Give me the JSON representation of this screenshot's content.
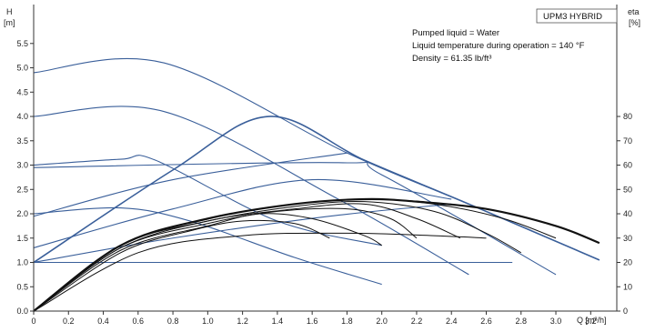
{
  "chart_data": {
    "type": "line",
    "badge": "UPM3 HYBRID",
    "info_lines": [
      "Pumped liquid = Water",
      "Liquid temperature during operation = 140 °F",
      "Density = 61.35 lb/ft³"
    ],
    "x_axis": {
      "label": "Q [m³/h]",
      "range": [
        0,
        3.35
      ],
      "ticks": [
        "0",
        "0.2",
        "0.4",
        "0.6",
        "0.8",
        "1.0",
        "1.2",
        "1.4",
        "1.6",
        "1.8",
        "2.0",
        "2.2",
        "2.4",
        "2.6",
        "2.8",
        "3.0",
        "3.2"
      ]
    },
    "y_left": {
      "label_top": "H",
      "label_unit": "[m]",
      "range": [
        0,
        6.3
      ],
      "ticks": [
        "0.0",
        "0.5",
        "1.0",
        "1.5",
        "2.0",
        "2.5",
        "3.0",
        "3.5",
        "4.0",
        "4.5",
        "5.0",
        "5.5"
      ]
    },
    "y_right": {
      "label_top": "eta",
      "label_unit": "[%]",
      "range": [
        0,
        126
      ],
      "ticks": [
        "0",
        "10",
        "20",
        "30",
        "40",
        "50",
        "60",
        "70",
        "80"
      ]
    },
    "grid": "off",
    "colors": {
      "head": "#3a5f9a",
      "eta": "#111111",
      "axis": "#333333"
    },
    "head_curves": [
      {
        "x": [
          0,
          0.75,
          1.8,
          2.5,
          3.25
        ],
        "y": [
          4.9,
          5.1,
          3.25,
          2.2,
          1.05
        ]
      },
      {
        "x": [
          0,
          0.75,
          1.75,
          2.5
        ],
        "y": [
          4.0,
          4.1,
          2.3,
          0.75
        ]
      },
      {
        "x": [
          0,
          0.5,
          0.7,
          1.4,
          2.0
        ],
        "y": [
          3.0,
          3.12,
          3.1,
          1.85,
          1.35
        ]
      },
      {
        "x": [
          0,
          0.5,
          0.9,
          1.5,
          2.0
        ],
        "y": [
          2.0,
          2.12,
          1.85,
          1.1,
          0.55
        ]
      },
      {
        "x": [
          0,
          1.75,
          2.0,
          3.0
        ],
        "y": [
          2.95,
          3.05,
          2.8,
          0.75
        ]
      },
      {
        "x": [
          0,
          2.75
        ],
        "y": [
          1.0,
          1.0
        ]
      },
      {
        "x": [
          0,
          0.8,
          1.35,
          1.9,
          2.5,
          3.25
        ],
        "y": [
          1.0,
          2.9,
          4.0,
          3.1,
          2.2,
          1.05
        ]
      },
      {
        "x": [
          0,
          0.8,
          1.8
        ],
        "y": [
          1.95,
          2.7,
          3.25
        ]
      },
      {
        "x": [
          0,
          0.8,
          1.6,
          2.4
        ],
        "y": [
          1.3,
          2.1,
          2.7,
          2.3
        ]
      },
      {
        "x": [
          0,
          0.8,
          1.7,
          2.4
        ],
        "y": [
          1.0,
          1.5,
          1.95,
          2.2
        ]
      }
    ],
    "eta_curves": [
      {
        "x": [
          0,
          0.5,
          1.0,
          1.5,
          1.9,
          2.2,
          2.6,
          3.0,
          3.25
        ],
        "y": [
          0,
          27,
          38,
          44,
          46,
          45,
          42,
          35,
          28
        ]
      },
      {
        "x": [
          0,
          0.5,
          1.0,
          1.5,
          1.9,
          2.3,
          2.7,
          3.0
        ],
        "y": [
          0,
          27,
          38,
          44,
          46,
          44,
          38,
          30
        ]
      },
      {
        "x": [
          0,
          0.5,
          1.0,
          1.5,
          1.9,
          2.3,
          2.6,
          2.8
        ],
        "y": [
          0,
          27,
          37,
          43,
          45,
          41,
          32,
          24
        ]
      },
      {
        "x": [
          0,
          0.5,
          1.0,
          1.5,
          1.9,
          2.2,
          2.45
        ],
        "y": [
          0,
          26,
          37,
          42,
          44,
          38,
          30
        ]
      },
      {
        "x": [
          0,
          0.5,
          1.0,
          1.4,
          1.8,
          2.05,
          2.2
        ],
        "y": [
          0,
          26,
          36,
          41,
          42,
          38,
          30
        ]
      },
      {
        "x": [
          0,
          0.5,
          1.0,
          1.3,
          1.6,
          1.9,
          2.0
        ],
        "y": [
          0,
          25,
          35,
          40,
          38,
          31,
          27
        ]
      },
      {
        "x": [
          0,
          0.5,
          0.9,
          1.2,
          1.5,
          1.7
        ],
        "y": [
          0,
          24,
          33,
          37,
          36,
          30
        ]
      },
      {
        "x": [
          0,
          0.6,
          1.2,
          1.8,
          2.3,
          2.6
        ],
        "y": [
          0,
          24,
          31,
          32,
          31,
          30
        ]
      }
    ]
  }
}
